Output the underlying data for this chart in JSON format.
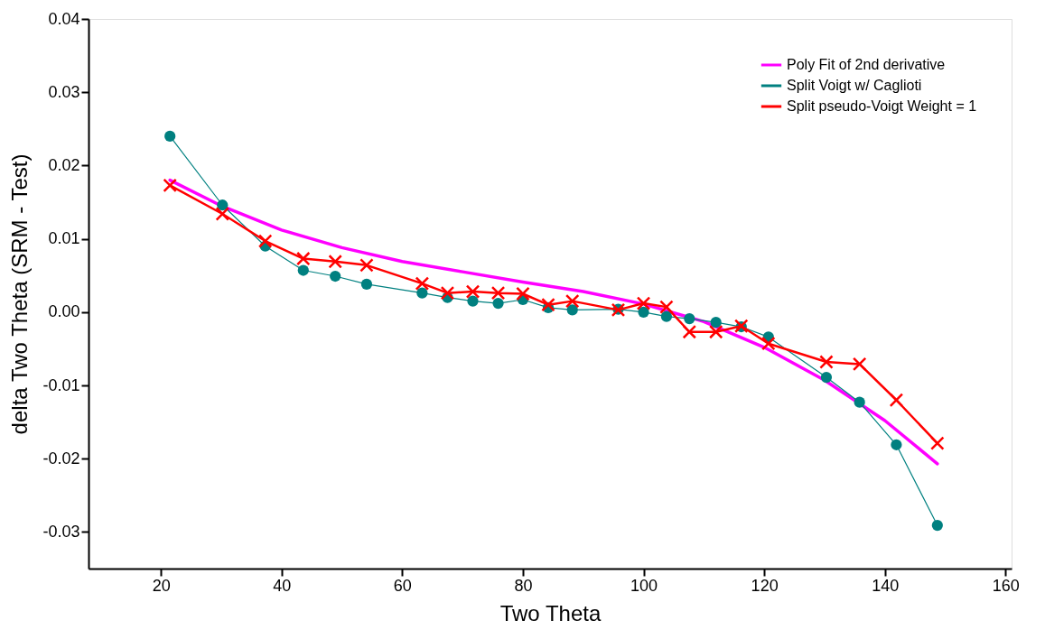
{
  "chart_data": {
    "type": "line",
    "xlabel": "Two Theta",
    "ylabel": "delta Two Theta (SRM - Test)",
    "xlim": [
      8,
      161
    ],
    "xticks": [
      20,
      40,
      60,
      80,
      100,
      120,
      140,
      160
    ],
    "ylim": [
      -0.035,
      0.04
    ],
    "yticks": [
      -0.03,
      -0.02,
      -0.01,
      {
        "value": 0,
        "label": "0.00"
      },
      0.01,
      0.02,
      0.03,
      0.04
    ],
    "grid": false,
    "legend": "top right",
    "series": [
      {
        "name": "Poly Fit of 2nd derivative",
        "color": "#ff00ff",
        "marker": "none",
        "x": [
          21.5,
          30,
          40,
          50,
          60,
          70,
          80,
          90,
          100,
          110,
          120,
          130,
          140,
          148.7
        ],
        "values": [
          0.018,
          0.0145,
          0.0112,
          0.0088,
          0.0069,
          0.0055,
          0.0041,
          0.0028,
          0.0011,
          -0.0013,
          -0.0048,
          -0.0093,
          -0.0148,
          -0.0207
        ]
      },
      {
        "name": "Split Voigt w/ Caglioti",
        "color": "#008080",
        "marker": "circle",
        "x": [
          21.5,
          30.2,
          37.3,
          43.6,
          48.9,
          54.1,
          63.3,
          67.5,
          71.7,
          75.9,
          80,
          84.2,
          88.2,
          95.8,
          100,
          103.8,
          107.6,
          112,
          116.2,
          120.7,
          130.3,
          135.8,
          141.9,
          148.7
        ],
        "values": [
          0.024,
          0.0146,
          0.009,
          0.0057,
          0.0049,
          0.0038,
          0.0026,
          0.002,
          0.0015,
          0.0012,
          0.0017,
          0.0006,
          0.0003,
          0.0004,
          0.0,
          -0.0006,
          -0.0009,
          -0.0014,
          -0.002,
          -0.0034,
          -0.0089,
          -0.0123,
          -0.0181,
          -0.0291
        ]
      },
      {
        "name": "Split pseudo-Voigt Weight = 1",
        "color": "#ff0000",
        "marker": "cross",
        "x": [
          21.5,
          30.2,
          37.3,
          43.6,
          48.9,
          54.1,
          63.3,
          67.5,
          71.7,
          75.9,
          80,
          84.2,
          88.2,
          95.8,
          100,
          103.8,
          107.6,
          112,
          116.2,
          120.7,
          130.3,
          135.8,
          141.9,
          148.7
        ],
        "values": [
          0.0173,
          0.0134,
          0.0097,
          0.0073,
          0.0069,
          0.0064,
          0.0039,
          0.0026,
          0.0028,
          0.0026,
          0.0025,
          0.001,
          0.0015,
          0.0003,
          0.0012,
          0.0007,
          -0.0027,
          -0.0027,
          -0.0019,
          -0.0043,
          -0.0068,
          -0.0071,
          -0.012,
          -0.0179
        ]
      }
    ]
  }
}
